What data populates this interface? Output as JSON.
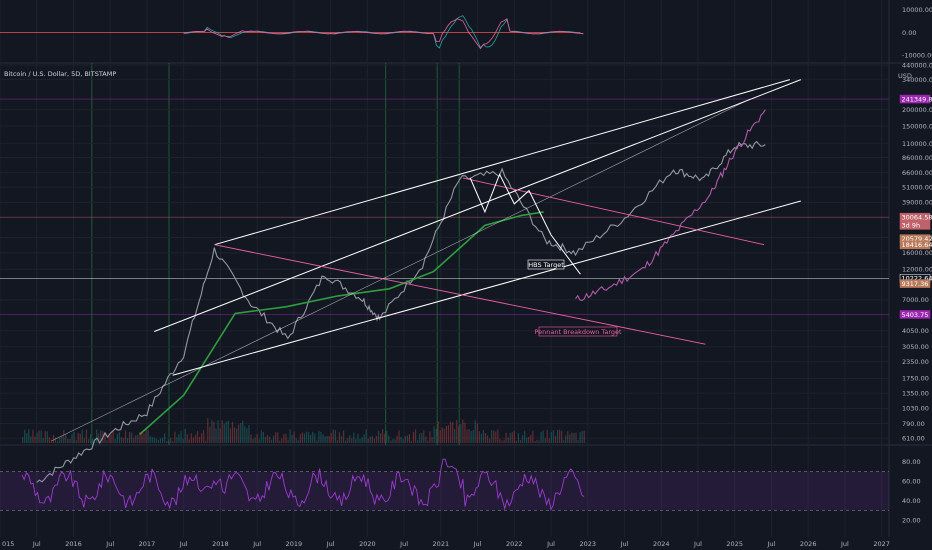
{
  "header": {
    "symbol_title": "Bitcoin / U.S. Dollar, 5D, BITSTAMP",
    "currency": "USD"
  },
  "annotations": {
    "hbs_target": "HBS Target",
    "pennant_target": "Pennant Breakdown Target"
  },
  "colors": {
    "background": "#131722",
    "grid": "#1e222d",
    "channel": "#ffffff",
    "pennant": "#ec5fa6",
    "ma_green": "#2e9e3f",
    "rsi": "#9c3bd2",
    "candle_gray": "#9598a1",
    "candle_purple": "#b05aa8",
    "volume": "#ef5350"
  },
  "chart_data": [
    {
      "type": "line",
      "panel": "oscillator",
      "y_ticks": [
        "10000.00",
        "0.00",
        "-10000.00"
      ],
      "ylim": [
        -12000,
        12000
      ]
    },
    {
      "type": "line",
      "panel": "price",
      "scale": "log",
      "x_ticks": [
        "015",
        "Jul",
        "2016",
        "Jul",
        "2017",
        "Jul",
        "2018",
        "Jul",
        "2019",
        "Jul",
        "2020",
        "Jul",
        "2021",
        "Jul",
        "2022",
        "Jul",
        "2023",
        "Jul",
        "2024",
        "Jul",
        "2025",
        "Jul",
        "2026",
        "Jul",
        "2027"
      ],
      "y_ticks": [
        "440000.00",
        "340000.00",
        "200000.00",
        "150000.00",
        "110000.00",
        "86000.00",
        "66000.00",
        "51000.00",
        "39000.00",
        "21000.00",
        "16000.00",
        "12000.00",
        "7000.00",
        "4050.00",
        "3050.00",
        "2350.00",
        "1750.00",
        "1350.00",
        "1030.00",
        "790.00",
        "610.00"
      ],
      "price_labels": [
        {
          "value": "241349.86",
          "color": "#9c27b0"
        },
        {
          "value": "30064.58",
          "color": "#c0626a"
        },
        {
          "value": "3d 9h",
          "color": "#c0626a"
        },
        {
          "value": "20579.42",
          "color": "#b87a5a"
        },
        {
          "value": "18416.64",
          "color": "#b87a5a"
        },
        {
          "value": "10222.64",
          "color": "#ffffff"
        },
        {
          "value": "9317.36",
          "color": "#b87a5a"
        },
        {
          "value": "5403.75",
          "color": "#9c27b0"
        }
      ],
      "series": [
        {
          "name": "",
          "x": [
            "2015-07",
            "2016-01",
            "2016-07",
            "2017-01",
            "2017-07",
            "2017-12",
            "2018-06",
            "2018-12",
            "2019-06",
            "2019-12",
            "2020-03",
            "2020-10",
            "2021-04",
            "2021-11",
            "2022-06",
            "2022-11",
            "2023-07",
            "2024-03",
            "2024-08",
            "2025-01",
            "2025-06"
          ],
          "y": [
            280,
            430,
            670,
            960,
            2700,
            17000,
            6500,
            3500,
            11000,
            7200,
            5000,
            13000,
            58000,
            66000,
            20000,
            16000,
            29500,
            70000,
            58000,
            105000,
            108000
          ]
        },
        {
          "name": "",
          "x": [
            "2022-11",
            "2023-04",
            "2023-10",
            "2024-03",
            "2024-09",
            "2025-01",
            "2025-06"
          ],
          "y": [
            7000,
            8500,
            12000,
            22000,
            45000,
            95000,
            200000
          ]
        }
      ]
    },
    {
      "type": "line",
      "panel": "rsi",
      "y_ticks": [
        "80.00",
        "60.00",
        "40.00",
        "20.00"
      ],
      "ylim": [
        15,
        90
      ],
      "levels": [
        70,
        30
      ]
    }
  ]
}
